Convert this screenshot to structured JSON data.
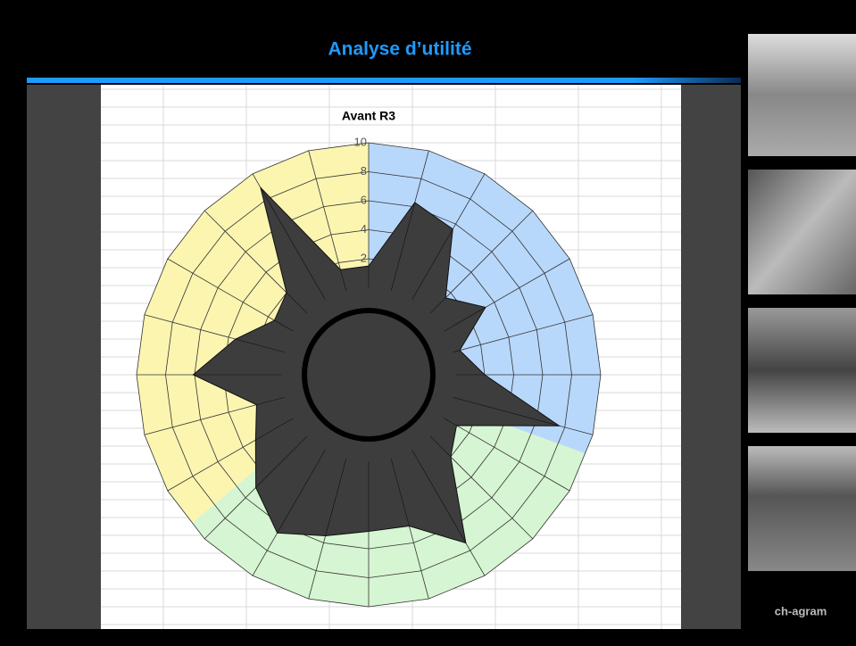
{
  "slide_title": "Analyse d’utilité",
  "footer": "ch-agram",
  "chart_data": {
    "type": "radar",
    "title": "Avant R3",
    "values": [
      1.5,
      6.3,
      5.6,
      1.5,
      3.3,
      0.5,
      2,
      7.6,
      1,
      2,
      7.4,
      4.8,
      4.8,
      5.5,
      6.6,
      5,
      3,
      2,
      6.1,
      3.5,
      1.5,
      2,
      8.9,
      1.5
    ],
    "color": "#3d3d3d",
    "ylim": [
      0,
      10
    ],
    "yticks": [
      2,
      4,
      6,
      8,
      10
    ],
    "grid": true
  }
}
